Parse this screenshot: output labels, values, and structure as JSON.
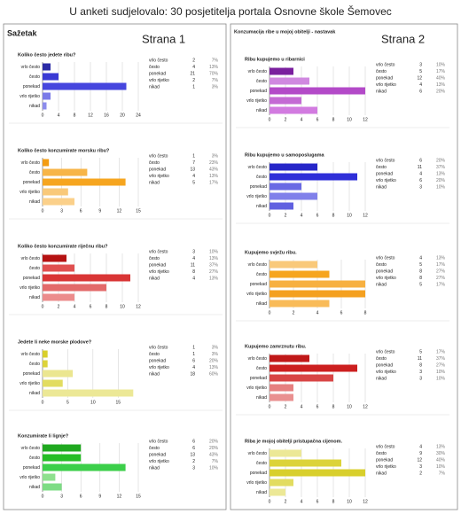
{
  "header": {
    "title": "U anketi sudjelovalo: 30 posjetitelja portala Osnovne škole Šemovec"
  },
  "panels": [
    {
      "heading": "Sažetak",
      "page_label": "Strana 1"
    },
    {
      "heading": "Konzumacija ribe u mojoj obitelji - nastavak",
      "page_label": "Strana 2"
    }
  ],
  "chart_data": [
    {
      "type": "bar",
      "title": "Koliko često jedete ribu?",
      "categories": [
        "vrlo često",
        "često",
        "ponekad",
        "vrlo rijetko",
        "nikad"
      ],
      "values": [
        2,
        4,
        21,
        2,
        1
      ],
      "percent_labels": [
        "7%",
        "13%",
        "70%",
        "7%",
        "3%"
      ],
      "colors": [
        "#2b2ba6",
        "#3a3ad4",
        "#4646de",
        "#7a7ae8",
        "#8c8cec"
      ],
      "xlim": [
        0,
        24
      ],
      "xticks": [
        0,
        4,
        8,
        12,
        16,
        20,
        24
      ],
      "grid": true
    },
    {
      "type": "bar",
      "title": "Koliko često konzumirate morsku ribu?",
      "categories": [
        "vrlo često",
        "često",
        "ponekad",
        "vrlo rijetko",
        "nikad"
      ],
      "values": [
        1,
        7,
        13,
        4,
        5
      ],
      "percent_labels": [
        "3%",
        "23%",
        "43%",
        "13%",
        "17%"
      ],
      "colors": [
        "#f39c12",
        "#f7b548",
        "#f6a51f",
        "#f9c97a",
        "#fbd08a"
      ],
      "xlim": [
        0,
        15
      ],
      "xticks": [
        0,
        3,
        6,
        9,
        12,
        15
      ],
      "grid": true
    },
    {
      "type": "bar",
      "title": "Koliko često konzumirate riječnu ribu?",
      "categories": [
        "vrlo često",
        "često",
        "ponekad",
        "vrlo rijetko",
        "nikad"
      ],
      "values": [
        3,
        4,
        11,
        8,
        4
      ],
      "percent_labels": [
        "10%",
        "13%",
        "37%",
        "27%",
        "13%"
      ],
      "colors": [
        "#b51212",
        "#e05050",
        "#d93535",
        "#e36a6a",
        "#ec8c8c"
      ],
      "xlim": [
        0,
        12
      ],
      "xticks": [
        0,
        2,
        4,
        6,
        8,
        10,
        12
      ],
      "grid": true
    },
    {
      "type": "bar",
      "title": "Jedete li neke morske plodove?",
      "categories": [
        "vrlo često",
        "često",
        "ponekad",
        "vrlo rijetko",
        "nikad"
      ],
      "values": [
        1,
        1,
        6,
        4,
        18
      ],
      "percent_labels": [
        "3%",
        "3%",
        "20%",
        "13%",
        "60%"
      ],
      "colors": [
        "#d8cf2c",
        "#dcd33a",
        "#ebe690",
        "#e2dc60",
        "#ece896"
      ],
      "xlim": [
        0,
        19
      ],
      "xticks": [
        0,
        5,
        10,
        15
      ],
      "grid": true
    },
    {
      "type": "bar",
      "title": "Konzumirate li lignje?",
      "categories": [
        "vrlo često",
        "često",
        "ponekad",
        "vrlo rijetko",
        "nikad"
      ],
      "values": [
        6,
        6,
        13,
        2,
        3
      ],
      "percent_labels": [
        "20%",
        "20%",
        "43%",
        "7%",
        "10%"
      ],
      "colors": [
        "#1fa81f",
        "#26bd26",
        "#3ccf4a",
        "#8ee08e",
        "#7ddc84"
      ],
      "xlim": [
        0,
        15
      ],
      "xticks": [
        0,
        3,
        6,
        9,
        12,
        15
      ],
      "grid": true
    },
    {
      "type": "bar",
      "title": "Ribu kupujemo u ribarnici",
      "categories": [
        "vrlo često",
        "često",
        "ponekad",
        "vrlo rijetko",
        "nikad"
      ],
      "values": [
        3,
        5,
        12,
        4,
        6
      ],
      "percent_labels": [
        "10%",
        "17%",
        "40%",
        "13%",
        "20%"
      ],
      "colors": [
        "#7a1f9e",
        "#d088e0",
        "#b34ac8",
        "#c46ad4",
        "#d27be0"
      ],
      "xlim": [
        0,
        12
      ],
      "xticks": [
        0,
        2,
        4,
        6,
        8,
        10,
        12
      ],
      "grid": true
    },
    {
      "type": "bar",
      "title": "Ribu kupujemo u samoposlugama",
      "categories": [
        "vrlo često",
        "često",
        "ponekad",
        "vrlo rijetko",
        "nikad"
      ],
      "values": [
        6,
        11,
        4,
        6,
        3
      ],
      "percent_labels": [
        "20%",
        "37%",
        "13%",
        "20%",
        "10%"
      ],
      "colors": [
        "#2626c8",
        "#2f2fd8",
        "#6a6ae4",
        "#8080ea",
        "#6060e0"
      ],
      "xlim": [
        0,
        12
      ],
      "xticks": [
        0,
        2,
        4,
        6,
        8,
        10,
        12
      ],
      "grid": true
    },
    {
      "type": "bar",
      "title": "Kupujemo svježu ribu.",
      "categories": [
        "vrlo često",
        "često",
        "ponekad",
        "vrlo rijetko",
        "nikad"
      ],
      "values": [
        4,
        5,
        8,
        8,
        5
      ],
      "percent_labels": [
        "13%",
        "17%",
        "27%",
        "27%",
        "17%"
      ],
      "colors": [
        "#f9c97a",
        "#f6a51f",
        "#f7b040",
        "#f4a020",
        "#f9bb58"
      ],
      "xlim": [
        0,
        8
      ],
      "xticks": [
        0,
        2,
        4,
        6,
        8
      ],
      "grid": true
    },
    {
      "type": "bar",
      "title": "Kupujemo zamrznutu ribu.",
      "categories": [
        "vrlo često",
        "često",
        "ponekad",
        "vrlo rijetko",
        "nikad"
      ],
      "values": [
        5,
        11,
        8,
        3,
        3
      ],
      "percent_labels": [
        "17%",
        "37%",
        "27%",
        "10%",
        "10%"
      ],
      "colors": [
        "#c01818",
        "#cc1f1f",
        "#d84545",
        "#e68080",
        "#e99090"
      ],
      "xlim": [
        0,
        12
      ],
      "xticks": [
        0,
        2,
        4,
        6,
        8,
        10,
        12
      ],
      "grid": true
    },
    {
      "type": "bar",
      "title": "Riba je mojoj obitelji pristupačna cijenom.",
      "categories": [
        "vrlo često",
        "često",
        "ponekad",
        "vrlo rijetko",
        "nikad"
      ],
      "values": [
        4,
        9,
        12,
        3,
        2
      ],
      "percent_labels": [
        "13%",
        "30%",
        "40%",
        "10%",
        "7%"
      ],
      "colors": [
        "#ece896",
        "#dcd33a",
        "#d8cf2c",
        "#e2dc60",
        "#ece896"
      ],
      "xlim": [
        0,
        12
      ],
      "xticks": [
        0,
        2,
        4,
        6,
        8,
        10,
        12
      ],
      "grid": true
    }
  ]
}
